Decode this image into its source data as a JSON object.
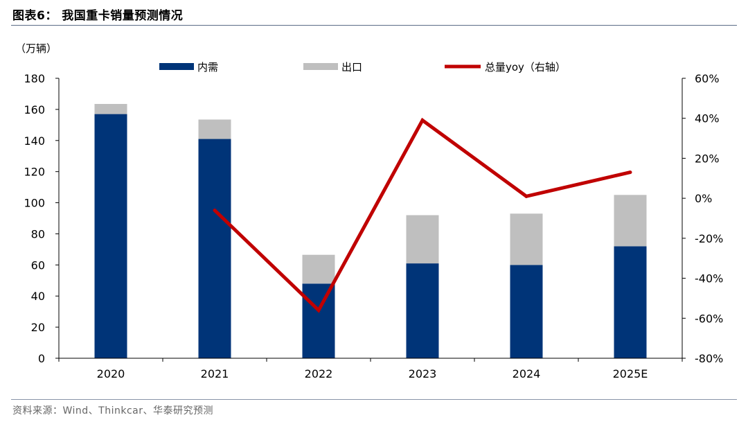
{
  "figure": {
    "title": "图表6：  我国重卡销量预测情况",
    "source": "资料来源：Wind、Thinkcar、华泰研究预测"
  },
  "chart_data": {
    "type": "bar",
    "stacked": true,
    "categories": [
      "2020",
      "2021",
      "2022",
      "2023",
      "2024",
      "2025E"
    ],
    "series": [
      {
        "name": "内需",
        "type": "bar",
        "axis": "left",
        "color": "#003478",
        "values": [
          157,
          141,
          48,
          61,
          60,
          72
        ]
      },
      {
        "name": "出口",
        "type": "bar",
        "axis": "left",
        "color": "#bfbfbf",
        "values": [
          6.5,
          12.5,
          18.5,
          31,
          33,
          33
        ]
      },
      {
        "name": "总量yoy（右轴）",
        "type": "line",
        "axis": "right",
        "color": "#c00000",
        "values": [
          null,
          -6,
          -56,
          39,
          1,
          13
        ]
      }
    ],
    "ylabel": "（万辆）",
    "ylim": [
      0,
      180
    ],
    "yticks": [
      0,
      20,
      40,
      60,
      80,
      100,
      120,
      140,
      160,
      180
    ],
    "y2lim": [
      -80,
      60
    ],
    "y2ticks": [
      "-80%",
      "-60%",
      "-40%",
      "-20%",
      "0%",
      "20%",
      "40%",
      "60%"
    ],
    "legend_position": "top",
    "grid": false
  }
}
